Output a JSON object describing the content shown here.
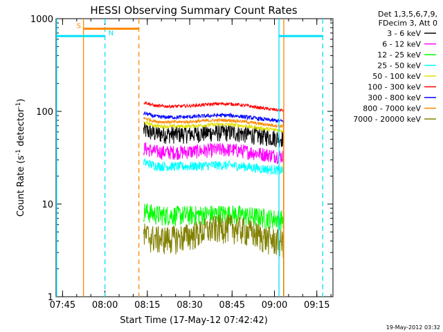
{
  "chart_data": {
    "type": "line",
    "title": "HESSI Observing Summary Count Rates",
    "xlabel": "Start Time (17-May-12 07:42:42)",
    "ylabel_main": "Count Rate (s",
    "ylabel_sup1": "-1",
    "ylabel_mid": " detector",
    "ylabel_sup2": "-1",
    "ylabel_end": ")",
    "yscale": "log",
    "ylim": [
      1,
      1000
    ],
    "x_unit": "minutes after 07:42:42",
    "xlim": [
      0,
      98
    ],
    "x_ticks": [
      {
        "t": 2.3,
        "label": "07:45"
      },
      {
        "t": 17.3,
        "label": "08:00"
      },
      {
        "t": 32.3,
        "label": "08:15"
      },
      {
        "t": 47.3,
        "label": "08:30"
      },
      {
        "t": 62.3,
        "label": "08:45"
      },
      {
        "t": 77.3,
        "label": "09:00"
      },
      {
        "t": 92.3,
        "label": "09:15"
      }
    ],
    "y_ticks": [
      {
        "v": 1,
        "label": "1"
      },
      {
        "v": 10,
        "label": "10"
      },
      {
        "v": 100,
        "label": "100"
      },
      {
        "v": 1000,
        "label": "1000"
      }
    ],
    "legend_header": [
      "Det 1,3,5,6,7,9,",
      "FDecim 3, Att 0"
    ],
    "data_start": 31.0,
    "data_end": 80.5,
    "series": [
      {
        "name": "3 - 6 keV",
        "color": "#000000",
        "base": 58,
        "bump": 0.1,
        "noise": 0.22
      },
      {
        "name": "6 - 12 keV",
        "color": "#ff00ff",
        "base": 37,
        "bump": 0.12,
        "noise": 0.18
      },
      {
        "name": "12 - 25 keV",
        "color": "#00ff00",
        "base": 7.8,
        "bump": 0.08,
        "noise": 0.25
      },
      {
        "name": "25 - 50 keV",
        "color": "#00ffff",
        "base": 26,
        "bump": 0.08,
        "noise": 0.12
      },
      {
        "name": "50 - 100 keV",
        "color": "#e0e000",
        "base": 70,
        "bump": 0.1,
        "noise": 0.05
      },
      {
        "name": "100 - 300 keV",
        "color": "#ff0000",
        "base": 115,
        "bump": 0.12,
        "noise": 0.04
      },
      {
        "name": "300 - 800 keV",
        "color": "#0000ff",
        "base": 88,
        "bump": 0.1,
        "noise": 0.05
      },
      {
        "name": "800 - 7000 keV",
        "color": "#ff8800",
        "base": 78,
        "bump": 0.1,
        "noise": 0.04
      },
      {
        "name": "7000 - 20000 keV",
        "color": "#808000",
        "base": 4.3,
        "bump": 0.4,
        "noise": 0.35
      }
    ],
    "flags": [
      {
        "label": "S",
        "color": "#ff8800",
        "t_start": 9.7,
        "t_end": 29.3,
        "level": 780
      },
      {
        "label": "N",
        "color": "#00e0ff",
        "t_start": 0,
        "t_end": 17.3,
        "level": 650
      },
      {
        "label": "",
        "color": "#00e0ff",
        "t_start": 78.9,
        "t_end": 94.4,
        "level": 650
      }
    ],
    "markers": [
      {
        "t": 0.2,
        "color": "#00e0ff",
        "style": "solid"
      },
      {
        "t": 9.7,
        "color": "#ff8800",
        "style": "solid"
      },
      {
        "t": 17.3,
        "color": "#00e0ff",
        "style": "dashed"
      },
      {
        "t": 29.3,
        "color": "#ff8800",
        "style": "dashed"
      },
      {
        "t": 78.9,
        "color": "#00e0ff",
        "style": "solid"
      },
      {
        "t": 80.6,
        "color": "#ff8800",
        "style": "solid"
      },
      {
        "t": 94.4,
        "color": "#00e0ff",
        "style": "dashed"
      }
    ]
  },
  "footer": {
    "timestamp": "19-May-2012 03:32"
  }
}
